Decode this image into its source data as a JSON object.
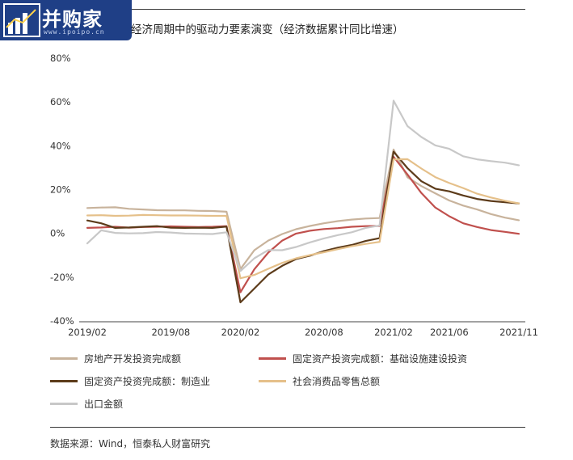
{
  "logo": {
    "text": "并购家",
    "sub": "www.ipoipo.cn",
    "color": "#1f3f86"
  },
  "chart_title": "经济周期中的驱动力要素演变（经济数据累计同比增速）",
  "source_note": "数据来源：Wind，恒泰私人财富研究",
  "chart_data": {
    "type": "line",
    "title": "经济周期中的驱动力要素演变（经济数据累计同比增速）",
    "xlabel": "",
    "ylabel": "",
    "ylim": [
      -40,
      80
    ],
    "yticks": [
      "80%",
      "60%",
      "40%",
      "20%",
      "0%",
      "-20%",
      "-40%"
    ],
    "x": [
      "2019/02",
      "2019/03",
      "2019/04",
      "2019/05",
      "2019/06",
      "2019/07",
      "2019/08",
      "2019/09",
      "2019/10",
      "2019/11",
      "2019/12",
      "2020/02",
      "2020/03",
      "2020/04",
      "2020/05",
      "2020/06",
      "2020/07",
      "2020/08",
      "2020/09",
      "2020/10",
      "2020/11",
      "2020/12",
      "2021/02",
      "2021/03",
      "2021/04",
      "2021/05",
      "2021/06",
      "2021/07",
      "2021/08",
      "2021/09",
      "2021/10",
      "2021/11"
    ],
    "xtick_labels": [
      "2019/02",
      "2019/08",
      "2020/02",
      "2020/08",
      "2021/02",
      "2021/06",
      "2021/11"
    ],
    "legend_position": "bottom",
    "grid": false,
    "series": [
      {
        "name": "房地产开发投资完成额",
        "color": "#c8b39c",
        "values": [
          11.6,
          11.8,
          11.9,
          11.2,
          10.9,
          10.6,
          10.5,
          10.5,
          10.3,
          10.2,
          9.9,
          -16.3,
          -7.7,
          -3.3,
          -0.3,
          1.9,
          3.4,
          4.6,
          5.6,
          6.3,
          6.8,
          7.0,
          38.3,
          25.6,
          21.6,
          18.3,
          15.0,
          12.7,
          10.9,
          8.8,
          7.2,
          6.0
        ]
      },
      {
        "name": "固定资产投资完成额：基础设施建设投资",
        "color": "#c0504d",
        "values": [
          2.5,
          2.7,
          3.0,
          2.6,
          2.9,
          3.0,
          3.2,
          3.0,
          2.9,
          3.0,
          3.3,
          -26.9,
          -16.4,
          -8.8,
          -3.3,
          -0.1,
          1.2,
          2.0,
          2.4,
          3.0,
          3.3,
          3.4,
          35.0,
          26.9,
          18.4,
          11.8,
          7.8,
          4.6,
          2.9,
          1.5,
          0.7,
          -0.2
        ]
      },
      {
        "name": "固定资产投资完成额：制造业",
        "color": "#5c3b1a",
        "values": [
          5.9,
          4.6,
          2.5,
          2.7,
          3.0,
          3.3,
          2.6,
          2.5,
          2.6,
          2.5,
          3.1,
          -31.5,
          -25.2,
          -18.8,
          -14.8,
          -11.7,
          -10.2,
          -8.1,
          -6.5,
          -5.3,
          -3.5,
          -2.2,
          37.3,
          29.8,
          23.8,
          20.4,
          19.2,
          17.3,
          15.7,
          14.8,
          14.2,
          13.7
        ]
      },
      {
        "name": "社会消费品零售总额",
        "color": "#e5c08a",
        "values": [
          8.2,
          8.3,
          8.0,
          8.1,
          8.4,
          8.3,
          8.2,
          8.2,
          8.1,
          8.0,
          8.0,
          -20.5,
          -19.0,
          -16.2,
          -13.5,
          -11.4,
          -9.9,
          -8.6,
          -7.2,
          -5.9,
          -4.8,
          -3.9,
          33.8,
          33.9,
          29.6,
          25.7,
          23.0,
          20.7,
          18.1,
          16.4,
          14.9,
          13.7
        ]
      },
      {
        "name": "出口金额",
        "color": "#c8c8c8",
        "values": [
          -4.6,
          1.4,
          0.2,
          0.0,
          0.1,
          0.6,
          0.4,
          -0.1,
          -0.2,
          -0.3,
          0.5,
          -17.2,
          -11.4,
          -7.6,
          -7.7,
          -6.2,
          -4.1,
          -2.3,
          -0.8,
          0.5,
          2.5,
          3.6,
          60.6,
          49.0,
          44.0,
          40.2,
          38.6,
          35.2,
          33.8,
          33.0,
          32.3,
          31.1
        ]
      }
    ]
  }
}
